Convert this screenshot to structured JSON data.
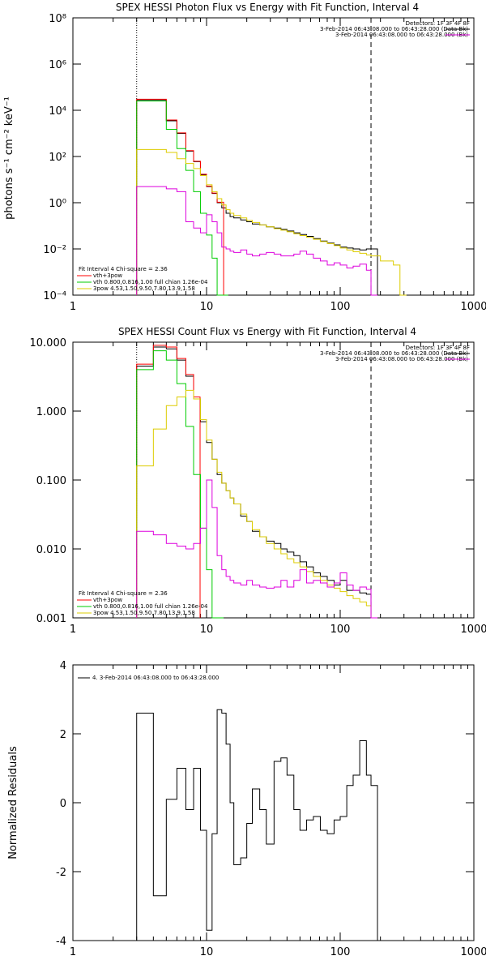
{
  "colors": {
    "black": "#000000",
    "red": "#ff0000",
    "green": "#00cc00",
    "yellow": "#ddcc00",
    "magenta": "#dd00dd",
    "orange": "#ee9900"
  },
  "panels": [
    {
      "title": "SPEX HESSI Photon Flux vs Energy with Fit Function, Interval 4",
      "ylabel": "photons s⁻¹ cm⁻² keV⁻¹",
      "legend_right": [
        "Detectors: 1F 3F 4F 8F",
        "3-Feb-2014 06:43:08.000 to 06:43:28.000 (Data-Bk)",
        "3-Feb-2014 06:43:08.000 to 06:43:28.000 (Bk)"
      ],
      "legend_left": [
        "Fit Interval 4   Chi-square = 2.36",
        "vth+3pow",
        "vth 0.800,0.816,1.00  full chian 1.26e-04",
        "3pow 4.53,1.50,9.50,7.80,13.9,1.58"
      ]
    },
    {
      "title": "SPEX HESSI Count Flux vs Energy with Fit Function, Interval 4",
      "ylabel": "",
      "legend_right": [
        "Detectors: 1F 3F 4F 8F",
        "3-Feb-2014 06:43:08.000 to 06:43:28.000 (Data-Bk)",
        "3-Feb-2014 06:43:08.000 to 06:43:28.000 (Bk)"
      ],
      "legend_left": [
        "Fit Interval 4   Chi-square = 2.36",
        "vth+3pow",
        "vth 0.800,0.816,1.00  full chian 1.26e-04",
        "3pow 4.53,1.50,9.50,7.80,13.9,1.58"
      ]
    },
    {
      "title": "",
      "ylabel": "Normalized Residuals",
      "legend_right": [],
      "legend_left": [
        "4.  3-Feb-2014 06:43:08.000 to 06:43:28.000"
      ]
    }
  ],
  "chart_data": [
    {
      "type": "line",
      "title": "SPEX HESSI Photon Flux vs Energy with Fit Function, Interval 4",
      "xlabel": "",
      "ylabel": "photons s⁻¹ cm⁻² keV⁻¹",
      "xscale": "log",
      "yscale": "log",
      "xlim": [
        1,
        1000
      ],
      "ylim": [
        0.0001,
        100000000
      ],
      "x_ticks": [
        "1",
        "10",
        "100",
        "1000"
      ],
      "y_ticks": [
        "10⁻⁴",
        "10⁻²",
        "10⁰",
        "10²",
        "10⁴",
        "10⁶",
        "10⁸"
      ],
      "vlines": [
        {
          "x": 3,
          "style": "dotted"
        },
        {
          "x": 170,
          "style": "dashed"
        }
      ],
      "series": [
        {
          "color": "black",
          "x": [
            3,
            4,
            5,
            6,
            7,
            8,
            9,
            10,
            11,
            12,
            13,
            14,
            15,
            16,
            18,
            20,
            22,
            25,
            28,
            32,
            36,
            40,
            45,
            50,
            56,
            63,
            71,
            80,
            90,
            100,
            112,
            125,
            140,
            157,
            170
          ],
          "y": [
            28000,
            28000,
            3500,
            1000,
            170,
            60,
            16,
            5,
            2.5,
            1.0,
            0.6,
            0.35,
            0.25,
            0.22,
            0.18,
            0.15,
            0.12,
            0.11,
            0.09,
            0.08,
            0.07,
            0.06,
            0.05,
            0.042,
            0.035,
            0.028,
            0.022,
            0.018,
            0.015,
            0.012,
            0.011,
            0.01,
            0.009,
            0.01,
            0.01
          ]
        },
        {
          "color": "red",
          "x": [
            3,
            4,
            5,
            6,
            7,
            8,
            9,
            10,
            11,
            12
          ],
          "y": [
            30000,
            30000,
            3800,
            1050,
            180,
            62,
            17,
            5.2,
            2.6,
            1.05
          ]
        },
        {
          "color": "green",
          "x": [
            3,
            4,
            5,
            6,
            7,
            8,
            9,
            10,
            11,
            12,
            13
          ],
          "y": [
            25000,
            25000,
            1500,
            220,
            25,
            3,
            0.35,
            0.04,
            0.004,
            0.0001,
            0.0001
          ]
        },
        {
          "color": "yellow",
          "x": [
            3,
            4,
            5,
            6,
            7,
            8,
            9,
            10,
            11,
            12,
            13,
            14,
            15,
            16,
            18,
            20,
            22,
            25,
            28,
            32,
            36,
            40,
            45,
            50,
            56,
            63,
            71,
            80,
            90,
            100,
            112,
            125,
            140,
            157,
            170,
            200,
            250,
            280
          ],
          "y": [
            200,
            200,
            150,
            80,
            50,
            30,
            15,
            6,
            3,
            1.5,
            0.8,
            0.5,
            0.35,
            0.28,
            0.22,
            0.17,
            0.14,
            0.11,
            0.09,
            0.075,
            0.065,
            0.055,
            0.045,
            0.038,
            0.032,
            0.026,
            0.021,
            0.017,
            0.014,
            0.011,
            0.009,
            0.0075,
            0.0065,
            0.0055,
            0.005,
            0.003,
            0.002,
            0.0001
          ]
        },
        {
          "color": "magenta",
          "x": [
            3,
            4,
            5,
            6,
            7,
            8,
            9,
            10,
            11,
            12,
            13,
            14,
            15,
            16,
            18,
            20,
            22,
            25,
            28,
            32,
            36,
            40,
            45,
            50,
            56,
            63,
            71,
            80,
            90,
            100,
            112,
            125,
            140,
            157,
            170
          ],
          "y": [
            5,
            5,
            4,
            3,
            0.15,
            0.08,
            0.05,
            0.3,
            0.15,
            0.05,
            0.012,
            0.01,
            0.008,
            0.007,
            0.009,
            0.006,
            0.005,
            0.006,
            0.007,
            0.006,
            0.005,
            0.005,
            0.006,
            0.008,
            0.006,
            0.004,
            0.003,
            0.002,
            0.0025,
            0.002,
            0.0015,
            0.0018,
            0.0022,
            0.0012,
            0.0001
          ]
        }
      ]
    },
    {
      "type": "line",
      "title": "SPEX HESSI Count Flux vs Energy with Fit Function, Interval 4",
      "xlabel": "",
      "ylabel": "",
      "xscale": "log",
      "yscale": "log",
      "xlim": [
        1,
        1000
      ],
      "ylim": [
        0.001,
        10
      ],
      "x_ticks": [
        "1",
        "10",
        "100",
        "1000"
      ],
      "y_ticks": [
        "0.001",
        "0.010",
        "0.100",
        "1.000",
        "10.000"
      ],
      "vlines": [
        {
          "x": 3,
          "style": "dotted"
        },
        {
          "x": 170,
          "style": "dashed"
        }
      ],
      "series": [
        {
          "color": "black",
          "x": [
            3,
            4,
            5,
            6,
            7,
            8,
            9,
            10,
            11,
            12,
            13,
            14,
            15,
            16,
            18,
            20,
            22,
            25,
            28,
            32,
            36,
            40,
            45,
            50,
            56,
            63,
            71,
            80,
            90,
            100,
            112,
            125,
            140,
            157,
            170
          ],
          "y": [
            4.5,
            8.5,
            8,
            5.5,
            3.2,
            1.5,
            0.7,
            0.35,
            0.2,
            0.12,
            0.09,
            0.07,
            0.055,
            0.045,
            0.03,
            0.025,
            0.018,
            0.015,
            0.013,
            0.012,
            0.01,
            0.009,
            0.008,
            0.0065,
            0.0055,
            0.0045,
            0.004,
            0.0035,
            0.003,
            0.0035,
            0.0025,
            0.0025,
            0.0023,
            0.0022,
            0.001
          ]
        },
        {
          "color": "red",
          "x": [
            3,
            4,
            5,
            6,
            7,
            8
          ],
          "y": [
            4.8,
            9,
            8.5,
            5.8,
            3.4,
            1.6
          ]
        },
        {
          "color": "green",
          "x": [
            3,
            4,
            5,
            6,
            7,
            8,
            9,
            10,
            11,
            12
          ],
          "y": [
            4.0,
            7.5,
            5.5,
            2.5,
            0.6,
            0.12,
            0.02,
            0.005,
            0.001,
            0.001
          ]
        },
        {
          "color": "yellow",
          "x": [
            3,
            4,
            5,
            6,
            7,
            8,
            9,
            10,
            11,
            12,
            13,
            14,
            15,
            16,
            18,
            20,
            22,
            25,
            28,
            32,
            36,
            40,
            45,
            50,
            56,
            63,
            71,
            80,
            90,
            100,
            112,
            125,
            140,
            157,
            170
          ],
          "y": [
            0.16,
            0.55,
            1.2,
            1.6,
            2.0,
            1.5,
            0.75,
            0.38,
            0.2,
            0.13,
            0.09,
            0.07,
            0.055,
            0.045,
            0.032,
            0.025,
            0.019,
            0.015,
            0.012,
            0.01,
            0.0085,
            0.0072,
            0.0063,
            0.0055,
            0.0047,
            0.004,
            0.0035,
            0.003,
            0.0027,
            0.0024,
            0.0021,
            0.0019,
            0.0017,
            0.0015,
            0.001
          ]
        },
        {
          "color": "magenta",
          "x": [
            3,
            4,
            5,
            6,
            7,
            8,
            9,
            10,
            11,
            12,
            13,
            14,
            15,
            16,
            18,
            20,
            22,
            25,
            28,
            32,
            36,
            40,
            45,
            50,
            56,
            63,
            71,
            80,
            90,
            100,
            112,
            125,
            140,
            157,
            170
          ],
          "y": [
            0.018,
            0.016,
            0.012,
            0.011,
            0.01,
            0.012,
            0.02,
            0.1,
            0.04,
            0.008,
            0.005,
            0.004,
            0.0035,
            0.0032,
            0.003,
            0.0035,
            0.003,
            0.0028,
            0.0027,
            0.0028,
            0.0035,
            0.0028,
            0.0035,
            0.005,
            0.0032,
            0.0035,
            0.0032,
            0.0028,
            0.0032,
            0.0045,
            0.003,
            0.0025,
            0.0028,
            0.0026,
            0.001
          ]
        }
      ]
    },
    {
      "type": "line",
      "title": "",
      "xlabel": "",
      "ylabel": "Normalized Residuals",
      "xscale": "log",
      "yscale": "linear",
      "xlim": [
        1,
        1000
      ],
      "ylim": [
        -4,
        4
      ],
      "x_ticks": [
        "1",
        "10",
        "100",
        "1000"
      ],
      "y_ticks": [
        "-4",
        "-2",
        "0",
        "2",
        "4"
      ],
      "series": [
        {
          "color": "black",
          "name": "4.  3-Feb-2014 06:43:08.000 to 06:43:28.000",
          "x": [
            3,
            4,
            5,
            6,
            7,
            8,
            9,
            10,
            11,
            12,
            13,
            14,
            15,
            16,
            18,
            20,
            22,
            25,
            28,
            32,
            36,
            40,
            45,
            50,
            56,
            63,
            71,
            80,
            90,
            100,
            112,
            125,
            140,
            157,
            170
          ],
          "y": [
            2.6,
            -2.7,
            0.1,
            1.0,
            -0.2,
            1.0,
            -0.8,
            -3.7,
            -0.9,
            2.7,
            2.6,
            1.7,
            0.0,
            -1.8,
            -1.6,
            -0.6,
            0.4,
            -0.2,
            -1.2,
            1.2,
            1.3,
            0.8,
            -0.2,
            -0.8,
            -0.5,
            -0.4,
            -0.8,
            -0.9,
            -0.5,
            -0.4,
            0.5,
            0.8,
            1.8,
            0.8,
            0.5
          ]
        }
      ]
    }
  ]
}
